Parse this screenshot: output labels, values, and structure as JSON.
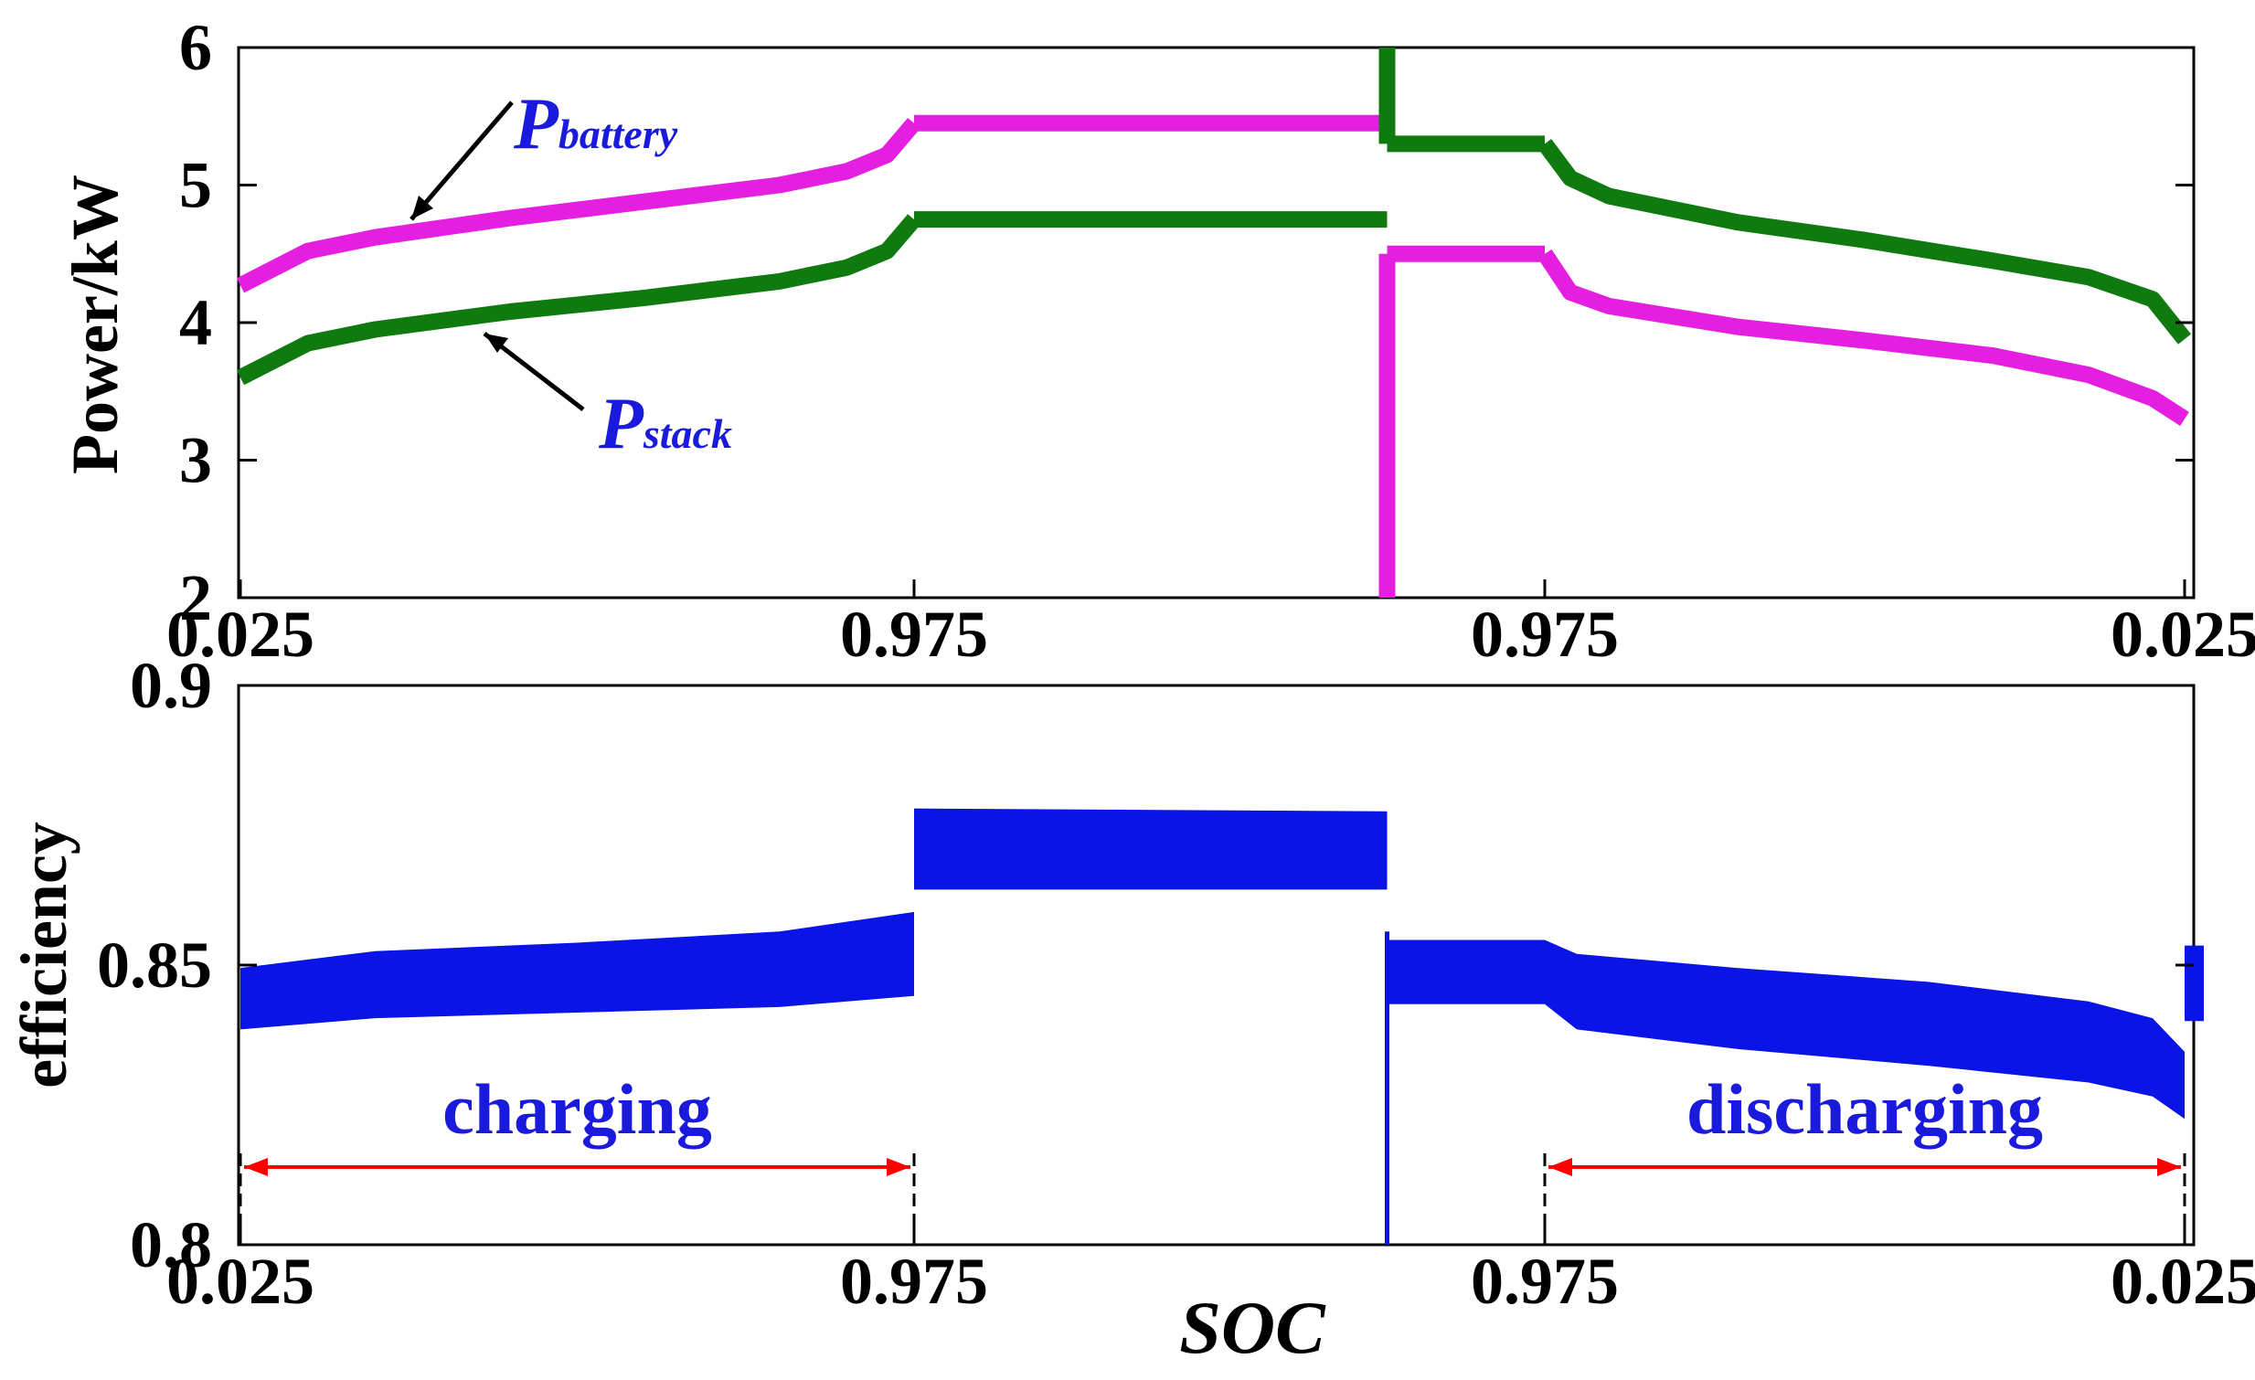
{
  "chart_data": [
    {
      "type": "line",
      "ylabel": "Power/kW",
      "ylim": [
        2,
        6
      ],
      "yticks": [
        "6",
        "5",
        "4",
        "3",
        "2"
      ],
      "xticks": [
        "0.025",
        "0.975",
        "0.975",
        "0.025"
      ],
      "xlim": [
        0,
        3
      ],
      "colors": {
        "battery": "#e41fe0",
        "stack": "#0f7a0f"
      },
      "series": [
        {
          "key": "battery",
          "segments": [
            {
              "x": [
                0.0,
                0.1,
                0.2,
                0.4,
                0.6,
                0.8,
                0.9,
                0.96,
                1.0
              ],
              "y": [
                4.27,
                4.52,
                4.62,
                4.76,
                4.88,
                5.0,
                5.1,
                5.22,
                5.45
              ]
            },
            {
              "x": [
                1.0,
                1.75
              ],
              "y": [
                5.45,
                5.45
              ]
            },
            {
              "x": [
                1.75,
                1.75
              ],
              "y": [
                2.0,
                4.5
              ]
            },
            {
              "x": [
                1.75,
                2.0
              ],
              "y": [
                4.5,
                4.5
              ]
            },
            {
              "x": [
                2.0,
                2.04,
                2.1,
                2.3,
                2.5,
                2.7,
                2.85,
                2.95,
                3.0
              ],
              "y": [
                4.5,
                4.22,
                4.12,
                3.97,
                3.87,
                3.76,
                3.62,
                3.45,
                3.3
              ]
            }
          ]
        },
        {
          "key": "stack",
          "segments": [
            {
              "x": [
                0.0,
                0.1,
                0.2,
                0.4,
                0.6,
                0.8,
                0.9,
                0.96,
                1.0
              ],
              "y": [
                3.6,
                3.85,
                3.95,
                4.08,
                4.18,
                4.3,
                4.4,
                4.52,
                4.75
              ]
            },
            {
              "x": [
                1.0,
                1.75
              ],
              "y": [
                4.75,
                4.75
              ]
            },
            {
              "x": [
                1.75,
                1.75
              ],
              "y": [
                6.0,
                5.3
              ]
            },
            {
              "x": [
                1.75,
                2.0
              ],
              "y": [
                5.3,
                5.3
              ]
            },
            {
              "x": [
                2.0,
                2.04,
                2.1,
                2.3,
                2.5,
                2.7,
                2.85,
                2.95,
                3.0
              ],
              "y": [
                5.3,
                5.05,
                4.92,
                4.73,
                4.6,
                4.45,
                4.33,
                4.17,
                3.88
              ]
            }
          ]
        }
      ],
      "annotations": [
        {
          "main": "P",
          "sub": "battery"
        },
        {
          "main": "P",
          "sub": "stack"
        }
      ]
    },
    {
      "type": "area",
      "ylabel": "efficiency",
      "xlabel": "SOC",
      "ylim": [
        0.8,
        0.9
      ],
      "yticks": [
        "0.9",
        "0.85",
        "0.8"
      ],
      "xticks": [
        "0.025",
        "0.975",
        "0.975",
        "0.025"
      ],
      "xlim": [
        0,
        3
      ],
      "color": "#0a14e6",
      "bands": [
        {
          "x": [
            0.0,
            0.2,
            0.5,
            0.8,
            1.0
          ],
          "low": [
            0.8385,
            0.8405,
            0.8415,
            0.8425,
            0.8445
          ],
          "high": [
            0.8495,
            0.8525,
            0.854,
            0.856,
            0.8595
          ]
        },
        {
          "x": [
            1.0,
            1.75
          ],
          "low": [
            0.8635,
            0.8635
          ],
          "high": [
            0.878,
            0.8775
          ]
        },
        {
          "x": [
            1.75,
            2.0
          ],
          "low": [
            0.843,
            0.843
          ],
          "high": [
            0.8545,
            0.8545
          ]
        },
        {
          "x": [
            2.0,
            2.05,
            2.3,
            2.6,
            2.85,
            2.95,
            3.0
          ],
          "low": [
            0.843,
            0.8385,
            0.835,
            0.832,
            0.829,
            0.8265,
            0.8225
          ],
          "high": [
            0.8545,
            0.852,
            0.8495,
            0.847,
            0.8435,
            0.8405,
            0.8345
          ]
        },
        {
          "x": [
            3.0,
            3.03
          ],
          "low": [
            0.84,
            0.84
          ],
          "high": [
            0.8535,
            0.8535
          ]
        }
      ],
      "spike": {
        "x": 1.75,
        "ylow": 0.8,
        "yhigh": 0.856
      },
      "phases": [
        {
          "label": "charging",
          "x": [
            0.0,
            1.0
          ]
        },
        {
          "label": "discharging",
          "x": [
            2.0,
            3.0
          ]
        }
      ],
      "phase_arrow_color": "#ff0000"
    }
  ]
}
